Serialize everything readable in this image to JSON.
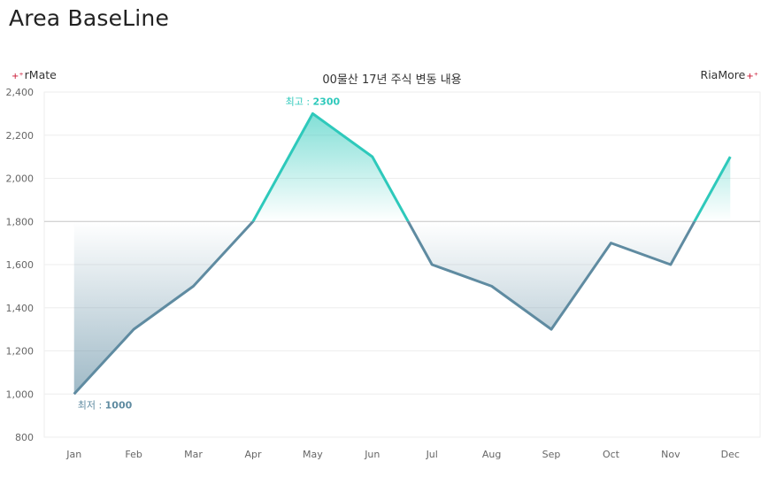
{
  "page": {
    "title": "Area BaseLine",
    "brand_left": "rMate",
    "brand_right": "RiaMore",
    "brand_mark": "+⁺"
  },
  "chart_data": {
    "type": "area",
    "title": "00물산 17년 주식 변동 내용",
    "xlabel": "",
    "ylabel": "",
    "categories": [
      "Jan",
      "Feb",
      "Mar",
      "Apr",
      "May",
      "Jun",
      "Jul",
      "Aug",
      "Sep",
      "Oct",
      "Nov",
      "Dec"
    ],
    "values": [
      1000,
      1300,
      1500,
      1800,
      2300,
      2100,
      1600,
      1500,
      1300,
      1700,
      1600,
      2100
    ],
    "ylim": [
      800,
      2400
    ],
    "yticks": [
      "800",
      "1,000",
      "1,200",
      "1,400",
      "1,600",
      "1,800",
      "2,000",
      "2,200",
      "2,400"
    ],
    "baseline": 1800,
    "grid": true,
    "annotations": [
      {
        "label": "최고 : ",
        "value": "2300",
        "category": "May"
      },
      {
        "label": "최저 : ",
        "value": "1000",
        "category": "Jan"
      }
    ],
    "colors": {
      "above": "#2ec9bb",
      "below": "#5f8ba1",
      "grid": "#eeeeee",
      "baseline": "#c8c8c8",
      "axis": "#cccccc",
      "tick_text": "#666666"
    }
  }
}
